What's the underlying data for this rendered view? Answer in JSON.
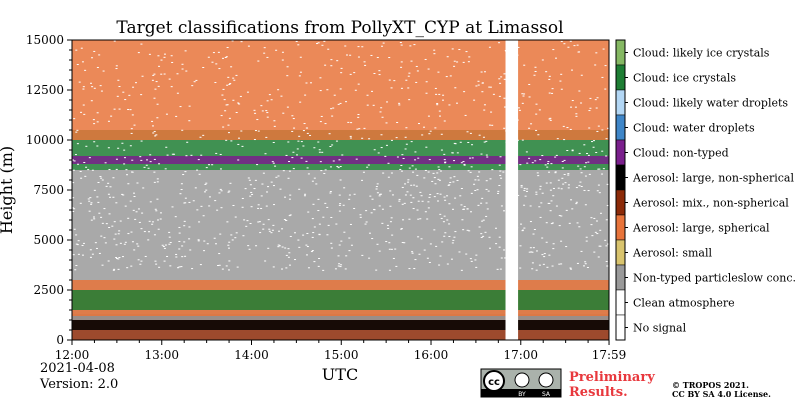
{
  "chart_data": {
    "type": "heatmap",
    "title": "Target classifications from PollyXT_CYP at Limassol",
    "xlabel": "UTC",
    "ylabel": "Height (m)",
    "x_ticks": [
      "12:00",
      "13:00",
      "14:00",
      "15:00",
      "16:00",
      "17:00",
      "17:59"
    ],
    "x_range_hours": [
      12.0,
      17.983
    ],
    "y_ticks": [
      "0",
      "2500",
      "5000",
      "7500",
      "10000",
      "12500",
      "15000"
    ],
    "ylim": [
      0,
      15000
    ],
    "data_gap_hours": [
      16.83,
      16.97
    ],
    "layers": [
      {
        "class": "Aerosol: mix., non-spherical",
        "bottom_m": 0,
        "top_m": 1300
      },
      {
        "class": "Aerosol: large, non-spherical",
        "bottom_m": 500,
        "top_m": 1000
      },
      {
        "class": "Non-typed particleslow conc.",
        "bottom_m": 1000,
        "top_m": 3500
      },
      {
        "class": "Aerosol: large, spherical",
        "bottom_m": 1200,
        "top_m": 3000
      },
      {
        "class": "Cloud: ice crystals",
        "bottom_m": 1500,
        "top_m": 2500
      },
      {
        "class": "Non-typed particleslow conc.",
        "bottom_m": 3500,
        "top_m": 8500
      },
      {
        "class": "Cloud: ice crystals",
        "bottom_m": 8500,
        "top_m": 10500
      },
      {
        "class": "Cloud: non-typed",
        "bottom_m": 8800,
        "top_m": 9200
      },
      {
        "class": "Aerosol: large, spherical",
        "bottom_m": 10000,
        "top_m": 15000
      }
    ]
  },
  "legend": [
    {
      "label": "Cloud: likely ice crystals",
      "color": "#85b863"
    },
    {
      "label": "Cloud: ice crystals",
      "color": "#1e7e34"
    },
    {
      "label": "Cloud: likely water droplets",
      "color": "#b3d7f5"
    },
    {
      "label": "Cloud: water droplets",
      "color": "#3f86c8"
    },
    {
      "label": "Cloud: non-typed",
      "color": "#7a1f8c"
    },
    {
      "label": "Aerosol: large, non-spherical",
      "color": "#000000"
    },
    {
      "label": "Aerosol: mix., non-spherical",
      "color": "#8c2a08"
    },
    {
      "label": "Aerosol: large, spherical",
      "color": "#e8743b"
    },
    {
      "label": "Aerosol: small",
      "color": "#d9c46e"
    },
    {
      "label": "Non-typed particleslow conc.",
      "color": "#9a9a9a"
    },
    {
      "label": "Clean atmosphere",
      "color": "#ffffff"
    },
    {
      "label": "No signal",
      "color": "#ffffff"
    }
  ],
  "footer": {
    "date": "2021-04-08",
    "version": "Version: 2.0",
    "preliminary_line1": "Preliminary",
    "preliminary_line2": "Results.",
    "copyright_line1": "© TROPOS 2021.",
    "copyright_line2": "CC BY SA 4.0 License.",
    "badge_by": "BY",
    "badge_sa": "SA"
  }
}
